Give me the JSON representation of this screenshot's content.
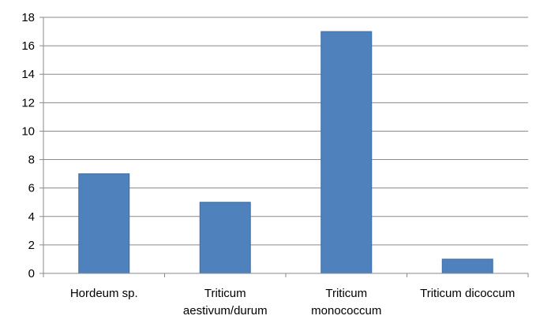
{
  "chart_data": {
    "type": "bar",
    "title": "",
    "xlabel": "",
    "ylabel": "",
    "categories": [
      [
        "Hordeum sp."
      ],
      [
        "Triticum",
        "aestivum/durum"
      ],
      [
        "Triticum",
        "monococcum"
      ],
      [
        "Triticum dicoccum"
      ]
    ],
    "values": [
      7,
      5,
      17,
      1
    ],
    "ylim": [
      0,
      18
    ],
    "yticks": [
      "0",
      "2",
      "4",
      "6",
      "8",
      "10",
      "12",
      "14",
      "16",
      "18"
    ],
    "grid": true,
    "legend": "none",
    "colors": {
      "bar": "#4f81bd",
      "bar_edge": "#3c6ea8",
      "grid": "#8a8a8a",
      "axis": "#8a8a8a"
    }
  }
}
